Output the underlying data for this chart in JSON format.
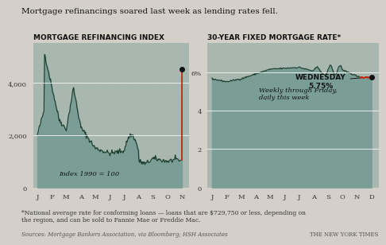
{
  "title": "Mortgage refinancings soared last week as lending rates fell.",
  "bg_color": "#d4cfc8",
  "chart_bg": "#a8b8b0",
  "left_title": "MORTGAGE REFINANCING INDEX",
  "right_title": "30-YEAR FIXED MORTGAGE RATE*",
  "left_xlabel_months": [
    "J",
    "F",
    "M",
    "A",
    "M",
    "J",
    "J",
    "A",
    "S",
    "O",
    "N"
  ],
  "right_xlabel_months": [
    "J",
    "F",
    "M",
    "A",
    "M",
    "J",
    "J",
    "A",
    "S",
    "O",
    "N",
    "D"
  ],
  "left_yticks": [
    0,
    2000,
    4000
  ],
  "right_yticks": [
    0,
    2,
    4,
    "6%"
  ],
  "left_annotation": "Index 1990 = 100",
  "right_annotation_label": "WEDNESDAY\n5.75%",
  "right_note": "Weekly through Friday,\ndaily this week",
  "footnote": "*National average rate for conforming loans — loans that are $729,750 or less, depending on\nthe region, and can be sold to Fannie Mae or Freddie Mac.",
  "source": "Sources: Mortgage Bankers Association, via Bloomberg; HSH Associates",
  "nyt_label": "THE NEW YORK TIMES",
  "line_color": "#1a3a2a",
  "fill_color": "#7a9e96",
  "red_color": "#cc2200",
  "white_line": "#ffffff",
  "dot_color": "#111111",
  "left_ylim": [
    0,
    5500
  ],
  "right_ylim": [
    0,
    7.5
  ],
  "left_hlines": [
    2000,
    4000
  ],
  "right_hlines": [
    2,
    4,
    6
  ]
}
